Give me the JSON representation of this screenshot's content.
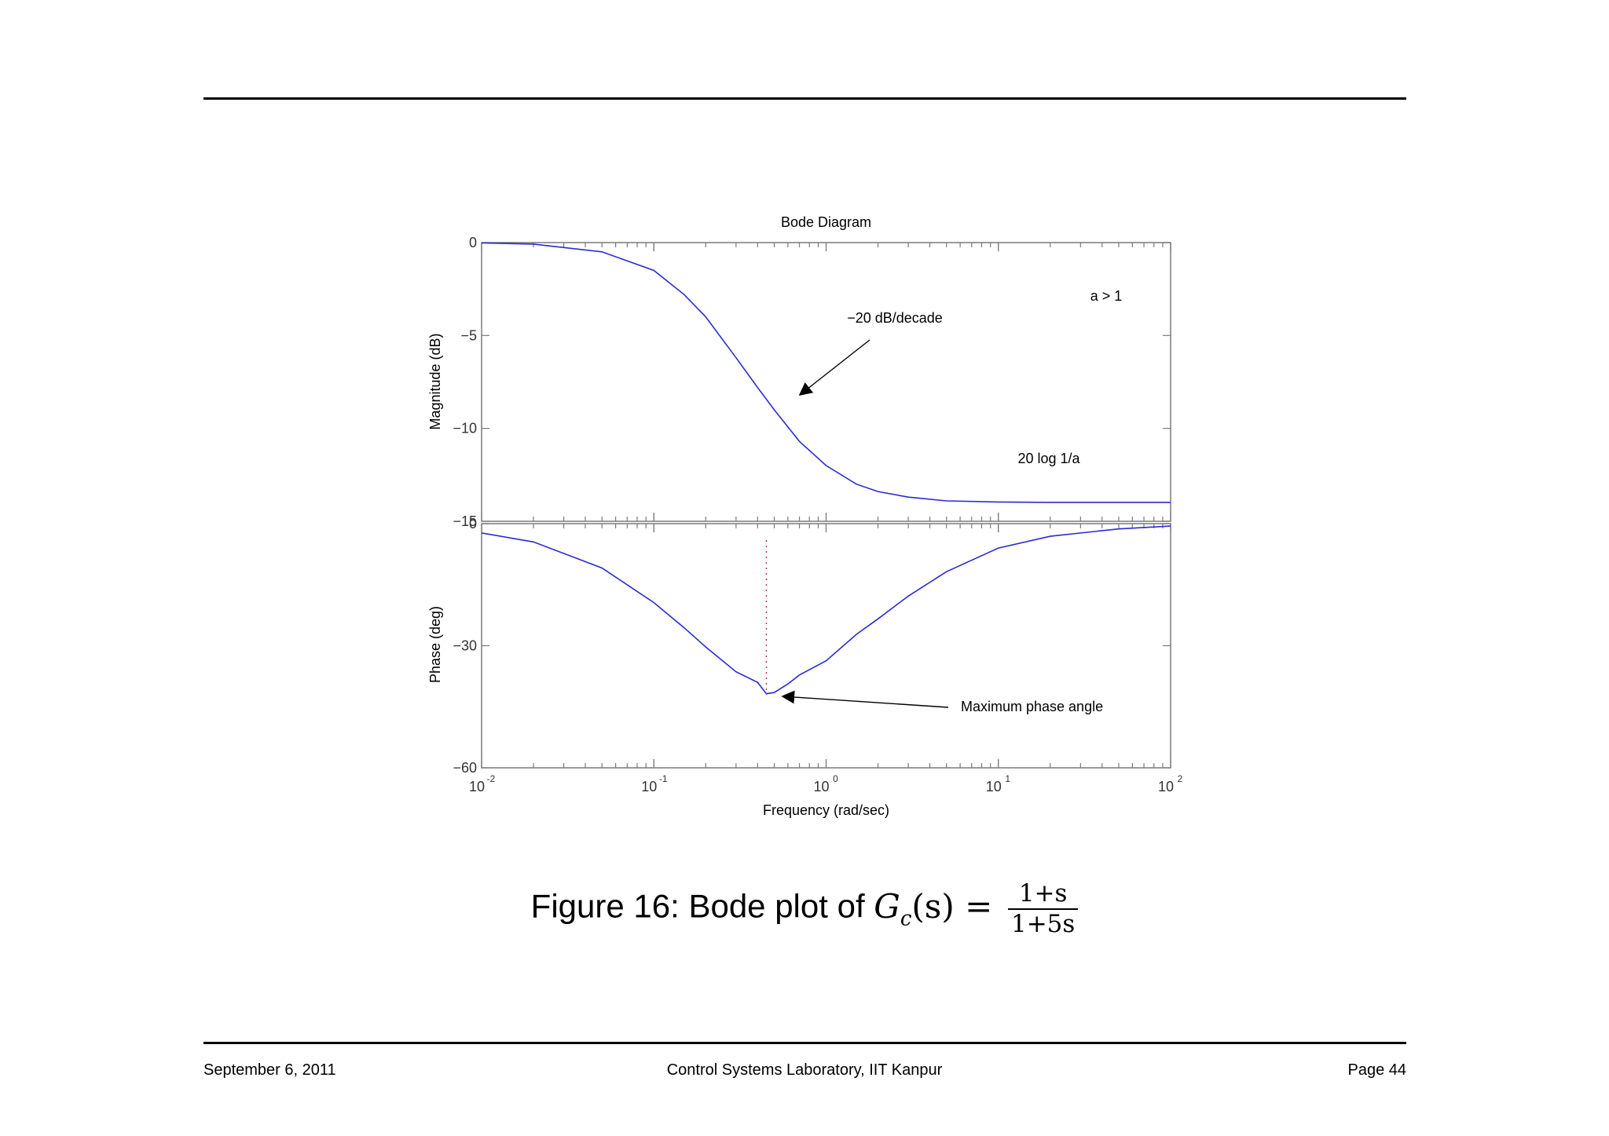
{
  "page": {
    "footer_left": "September 6, 2011",
    "footer_center": "Control Systems Laboratory, IIT Kanpur",
    "footer_right": "Page 44"
  },
  "caption": {
    "prefix": "Figure 16: Bode plot of",
    "lhs": "G",
    "lhs_sub": "c",
    "lhs_arg": "(s) =",
    "numerator": "1+s",
    "denominator": "1+5s"
  },
  "chart_data": {
    "type": "line",
    "title": "Bode Diagram",
    "xlabel": "Frequency  (rad/sec)",
    "xscale": "log",
    "xlim": [
      0.01,
      100
    ],
    "x_ticks": [
      "-2",
      "-1",
      "0",
      "1",
      "2"
    ],
    "x_tick_base": "10",
    "line_color": "#2b2bd4",
    "magnitude": {
      "ylabel": "Magnitude (dB)",
      "ylim": [
        -15,
        0
      ],
      "y_ticks": [
        "0",
        "−5",
        "−10",
        "−15"
      ],
      "x": [
        0.01,
        0.02,
        0.05,
        0.1,
        0.15,
        0.2,
        0.3,
        0.4,
        0.5,
        0.7,
        1,
        1.5,
        2,
        3,
        5,
        10,
        20,
        50,
        100
      ],
      "y": [
        -0.02,
        -0.08,
        -0.5,
        -1.5,
        -2.8,
        -4.0,
        -6.2,
        -7.8,
        -9.0,
        -10.7,
        -12.0,
        -13.0,
        -13.4,
        -13.7,
        -13.9,
        -13.96,
        -13.98,
        -13.98,
        -13.98
      ]
    },
    "phase": {
      "ylabel": "Phase (deg)",
      "ylim": [
        -60,
        0
      ],
      "y_ticks": [
        "0",
        "−30",
        "−60"
      ],
      "x": [
        0.01,
        0.02,
        0.05,
        0.1,
        0.15,
        0.2,
        0.3,
        0.4,
        0.45,
        0.5,
        0.6,
        0.7,
        1,
        1.5,
        2,
        3,
        5,
        10,
        20,
        50,
        100
      ],
      "y": [
        -2.3,
        -4.5,
        -10.9,
        -19.4,
        -25.6,
        -30.3,
        -36.4,
        -39.0,
        -41.8,
        -41.5,
        -39.4,
        -37.2,
        -33.7,
        -27.2,
        -23.4,
        -17.8,
        -11.8,
        -6.0,
        -3.1,
        -1.3,
        -0.6
      ]
    },
    "annotations": [
      {
        "text": "a > 1",
        "panel": "magnitude"
      },
      {
        "text": "−20 dB/decade",
        "panel": "magnitude"
      },
      {
        "text": "20 log 1/a",
        "panel": "magnitude"
      },
      {
        "text": "Maximum phase angle",
        "panel": "phase"
      }
    ]
  }
}
